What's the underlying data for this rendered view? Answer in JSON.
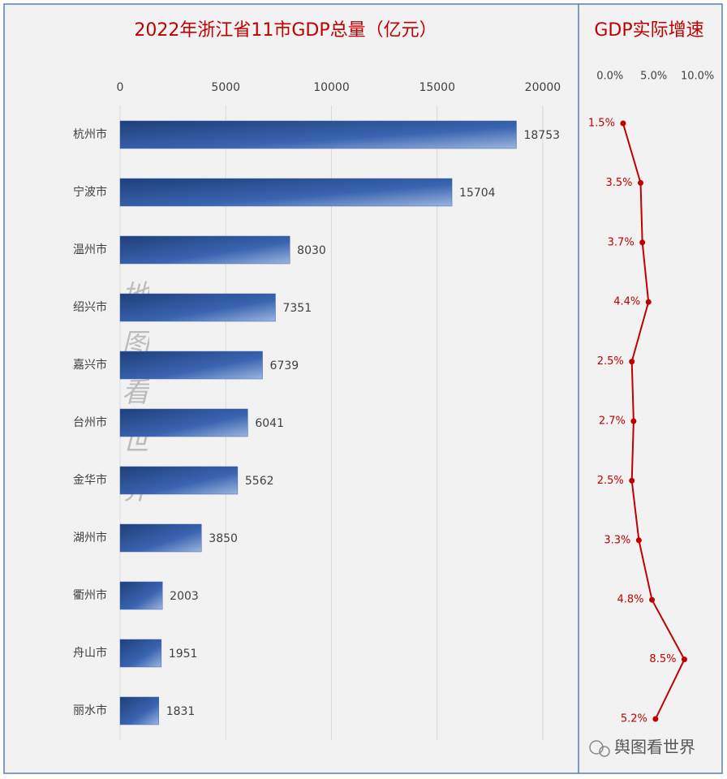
{
  "chart_data": [
    {
      "type": "bar",
      "orientation": "horizontal",
      "title": "2022年浙江省11市GDP总量（亿元）",
      "categories": [
        "杭州市",
        "宁波市",
        "温州市",
        "绍兴市",
        "嘉兴市",
        "台州市",
        "金华市",
        "湖州市",
        "衢州市",
        "舟山市",
        "丽水市"
      ],
      "values": [
        18753,
        15704,
        8030,
        7351,
        6739,
        6041,
        5562,
        3850,
        2003,
        1951,
        1831
      ],
      "color": "#3a64b0",
      "xlim": [
        0,
        21000
      ],
      "xticks": [
        0,
        5000,
        10000,
        15000,
        20000
      ],
      "grid": true
    },
    {
      "type": "line",
      "orientation": "horizontal",
      "title": "GDP实际增速",
      "values": [
        1.5,
        3.5,
        3.7,
        4.4,
        2.5,
        2.7,
        2.5,
        3.3,
        4.8,
        8.5,
        5.2
      ],
      "value_labels": [
        "1.5%",
        "3.5%",
        "3.7%",
        "4.4%",
        "2.5%",
        "2.7%",
        "2.5%",
        "3.3%",
        "4.8%",
        "8.5%",
        "5.2%"
      ],
      "color": "#c00000",
      "xlim": [
        -3.5,
        13
      ],
      "xticks": [
        {
          "value": 0,
          "label": "0.0%"
        },
        {
          "value": 5,
          "label": "5.0%"
        },
        {
          "value": 10,
          "label": "10.0%"
        }
      ],
      "grid": false
    }
  ],
  "watermarks": [
    "地图看世界",
    "舆图看世界"
  ]
}
